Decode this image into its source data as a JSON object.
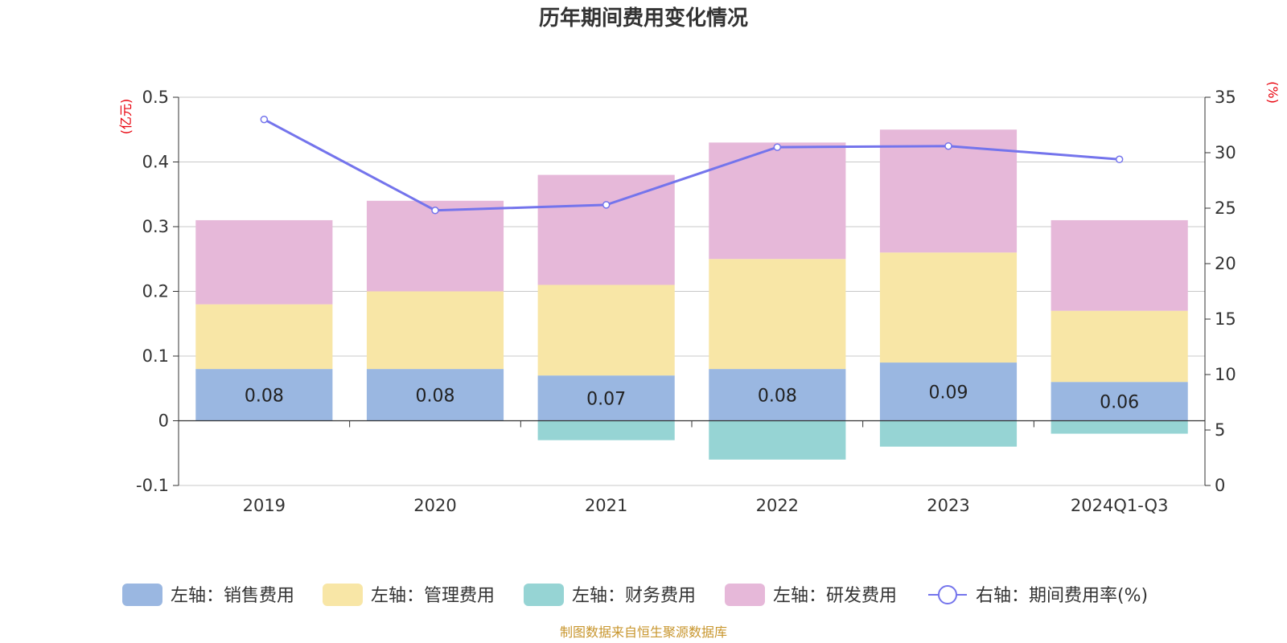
{
  "chart_data": {
    "type": "bar",
    "stacked": true,
    "title": "历年期间费用变化情况",
    "categories": [
      "2019",
      "2020",
      "2021",
      "2022",
      "2023",
      "2024Q1-Q3"
    ],
    "left_axis": {
      "unit": "(亿元)",
      "ylim": [
        -0.1,
        0.5
      ],
      "ticks": [
        "-0.1",
        "0",
        "0.1",
        "0.2",
        "0.3",
        "0.4",
        "0.5"
      ]
    },
    "right_axis": {
      "unit": "(%)",
      "ylim": [
        0,
        35
      ],
      "ticks": [
        "0",
        "5",
        "10",
        "15",
        "20",
        "25",
        "30",
        "35"
      ]
    },
    "series": [
      {
        "name": "左轴：销售费用",
        "values": [
          0.08,
          0.08,
          0.07,
          0.08,
          0.09,
          0.06
        ],
        "color": "#9ab7e1",
        "labels": [
          "0.08",
          "0.08",
          "0.07",
          "0.08",
          "0.09",
          "0.06"
        ]
      },
      {
        "name": "左轴：管理费用",
        "values": [
          0.1,
          0.12,
          0.14,
          0.17,
          0.17,
          0.11
        ],
        "color": "#f8e6a6"
      },
      {
        "name": "左轴：财务费用",
        "values": [
          0.0,
          0.0,
          -0.03,
          -0.06,
          -0.04,
          -0.02
        ],
        "color": "#96d4d4"
      },
      {
        "name": "左轴：研发费用",
        "values": [
          0.13,
          0.14,
          0.17,
          0.18,
          0.19,
          0.14
        ],
        "color": "#e6b8d9"
      }
    ],
    "line": {
      "name": "右轴：期间费用率(%)",
      "values": [
        33.0,
        24.8,
        25.3,
        30.5,
        30.6,
        29.4
      ],
      "color": "#7474ec"
    },
    "grid": true,
    "legend_position": "bottom"
  },
  "source": "制图数据来自恒生聚源数据库"
}
